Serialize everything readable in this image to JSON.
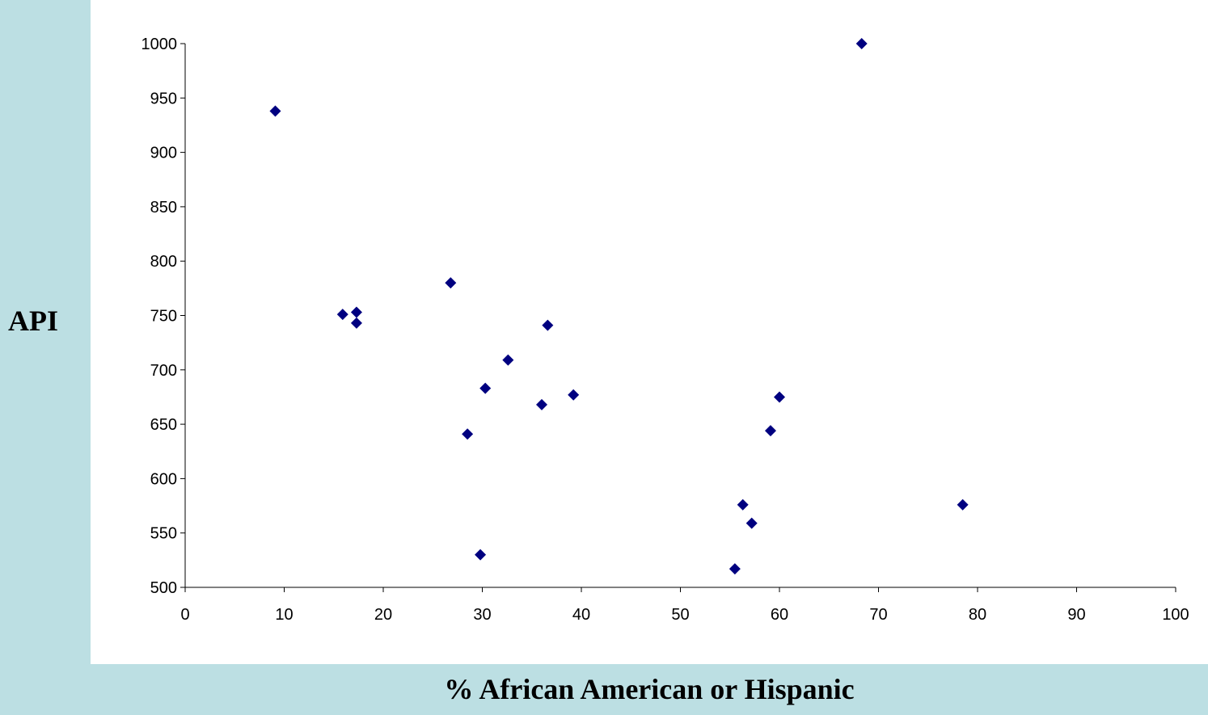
{
  "chart_data": {
    "type": "scatter",
    "xlabel": "% African American or Hispanic",
    "ylabel": "API",
    "xlim": [
      0,
      100
    ],
    "ylim": [
      500,
      1000
    ],
    "x_ticks": [
      0,
      10,
      20,
      30,
      40,
      50,
      60,
      70,
      80,
      90,
      100
    ],
    "y_ticks": [
      500,
      550,
      600,
      650,
      700,
      750,
      800,
      850,
      900,
      950,
      1000
    ],
    "x_tick_labels": [
      "0",
      "10",
      "20",
      "30",
      "40",
      "50",
      "60",
      "70",
      "80",
      "90",
      "100"
    ],
    "y_tick_labels": [
      "500",
      "550",
      "600",
      "650",
      "700",
      "750",
      "800",
      "850",
      "900",
      "950",
      "1000"
    ],
    "grid": false,
    "legend": "none",
    "series": [
      {
        "marker": "diamond",
        "color": "#000080",
        "points": [
          {
            "x": 9.1,
            "y": 938
          },
          {
            "x": 15.9,
            "y": 751
          },
          {
            "x": 17.3,
            "y": 753
          },
          {
            "x": 17.3,
            "y": 743
          },
          {
            "x": 26.8,
            "y": 780
          },
          {
            "x": 28.5,
            "y": 641
          },
          {
            "x": 29.8,
            "y": 530
          },
          {
            "x": 30.3,
            "y": 683
          },
          {
            "x": 32.6,
            "y": 709
          },
          {
            "x": 36.0,
            "y": 668
          },
          {
            "x": 36.6,
            "y": 741
          },
          {
            "x": 39.2,
            "y": 677
          },
          {
            "x": 55.5,
            "y": 517
          },
          {
            "x": 56.3,
            "y": 576
          },
          {
            "x": 57.2,
            "y": 559
          },
          {
            "x": 59.1,
            "y": 644
          },
          {
            "x": 60.0,
            "y": 675
          },
          {
            "x": 68.3,
            "y": 1000
          },
          {
            "x": 78.5,
            "y": 576
          }
        ]
      }
    ]
  },
  "colors": {
    "page_background": "#bcdfe3",
    "plot_background": "#ffffff",
    "marker": "#000080",
    "axis": "#000000"
  }
}
